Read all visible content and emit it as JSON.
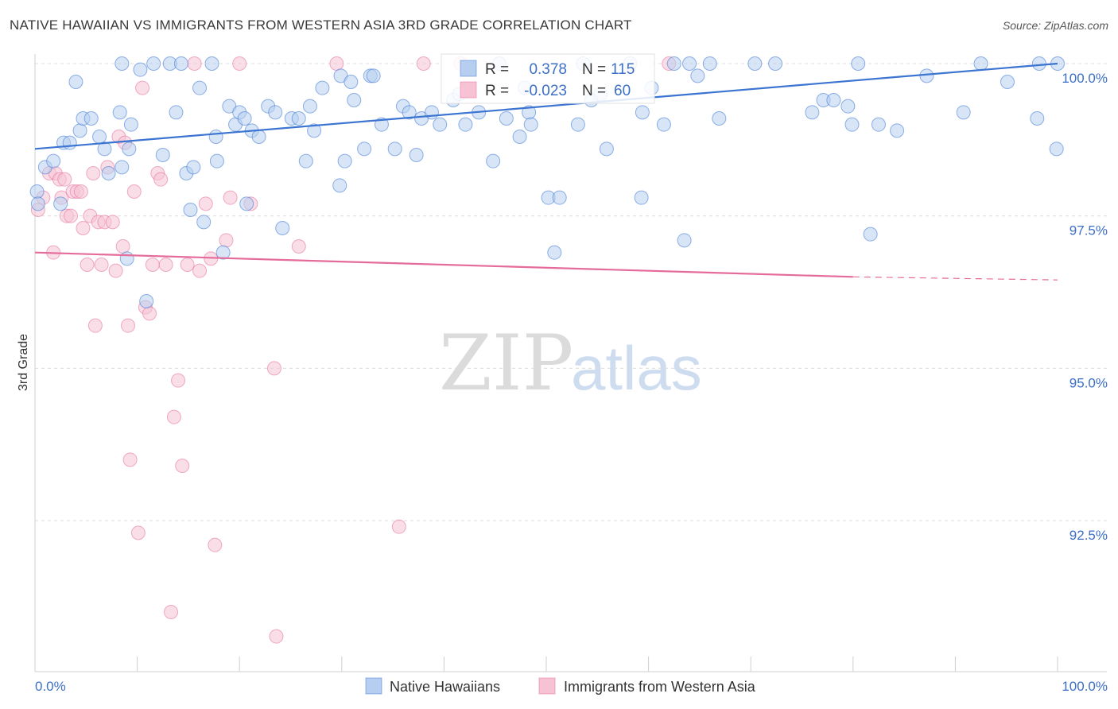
{
  "header": {
    "title": "NATIVE HAWAIIAN VS IMMIGRANTS FROM WESTERN ASIA 3RD GRADE CORRELATION CHART",
    "source": "Source: ZipAtlas.com"
  },
  "watermark": {
    "zip": "ZIP",
    "atlas": "atlas"
  },
  "stats": {
    "r_label": "R =",
    "n_label": "N =",
    "blue": {
      "r": "0.378",
      "n": "115"
    },
    "pink": {
      "r": "-0.023",
      "n": "60"
    }
  },
  "legend": {
    "blue_label": "Native Hawaiians",
    "pink_label": "Immigrants from Western Asia"
  },
  "colors": {
    "blue": "#3b74d1",
    "blue_fill": "#b6cff1",
    "pink": "#e46b9a",
    "pink_fill": "#f6c2d4",
    "grid": "#dcdcdc",
    "axis_text": "#3c6fc7"
  },
  "chart_data": {
    "type": "scatter",
    "title": "NATIVE HAWAIIAN VS IMMIGRANTS FROM WESTERN ASIA 3RD GRADE CORRELATION CHART",
    "xlabel": "",
    "ylabel": "3rd Grade",
    "xlim": [
      0,
      100
    ],
    "ylim": [
      90.2,
      100.6
    ],
    "x_tick_labels": [
      "0.0%",
      "100.0%"
    ],
    "y_ticks": [
      100.0,
      97.5,
      95.0,
      92.5
    ],
    "y_tick_labels": [
      "100.0%",
      "97.5%",
      "95.0%",
      "92.5%"
    ],
    "grid": true,
    "legend_position": "bottom-center",
    "series": [
      {
        "name": "Native Hawaiians",
        "r": 0.378,
        "n": 115,
        "trend": {
          "x": [
            0,
            100
          ],
          "y": [
            98.6,
            100.0
          ]
        },
        "points": [
          [
            0.2,
            97.9
          ],
          [
            0.3,
            97.7
          ],
          [
            1,
            98.3
          ],
          [
            1.8,
            98.4
          ],
          [
            2.5,
            97.7
          ],
          [
            2.8,
            98.7
          ],
          [
            3.4,
            98.7
          ],
          [
            4,
            99.7
          ],
          [
            4.4,
            98.9
          ],
          [
            4.7,
            99.1
          ],
          [
            5.5,
            99.1
          ],
          [
            6.3,
            98.8
          ],
          [
            6.8,
            98.6
          ],
          [
            7.2,
            98.2
          ],
          [
            8.3,
            99.2
          ],
          [
            8.5,
            98.3
          ],
          [
            8.5,
            100.0
          ],
          [
            9,
            96.8
          ],
          [
            9.2,
            98.6
          ],
          [
            9.4,
            99.0
          ],
          [
            10.3,
            99.9
          ],
          [
            10.9,
            96.1
          ],
          [
            11.6,
            100.0
          ],
          [
            12.5,
            98.5
          ],
          [
            13.2,
            100.0
          ],
          [
            13.8,
            99.2
          ],
          [
            14.3,
            100.0
          ],
          [
            14.8,
            98.2
          ],
          [
            15.2,
            97.6
          ],
          [
            15.5,
            98.3
          ],
          [
            16.1,
            99.6
          ],
          [
            16.5,
            97.4
          ],
          [
            17.3,
            100.0
          ],
          [
            17.7,
            98.8
          ],
          [
            17.8,
            98.4
          ],
          [
            18.4,
            96.9
          ],
          [
            19,
            99.3
          ],
          [
            19.6,
            99.0
          ],
          [
            20,
            99.2
          ],
          [
            20.5,
            99.1
          ],
          [
            20.7,
            97.7
          ],
          [
            21.2,
            98.9
          ],
          [
            21.9,
            98.8
          ],
          [
            22.8,
            99.3
          ],
          [
            23.5,
            99.2
          ],
          [
            24.2,
            97.3
          ],
          [
            25.1,
            99.1
          ],
          [
            25.8,
            99.1
          ],
          [
            26.5,
            98.4
          ],
          [
            26.9,
            99.3
          ],
          [
            27.3,
            98.9
          ],
          [
            28.1,
            99.6
          ],
          [
            29.8,
            98.0
          ],
          [
            29.9,
            99.8
          ],
          [
            30.3,
            98.4
          ],
          [
            30.9,
            99.7
          ],
          [
            31.2,
            99.4
          ],
          [
            32.2,
            98.6
          ],
          [
            32.8,
            99.8
          ],
          [
            33.1,
            99.8
          ],
          [
            33.9,
            99.0
          ],
          [
            35.2,
            98.6
          ],
          [
            36,
            99.3
          ],
          [
            36.6,
            99.2
          ],
          [
            37.3,
            98.5
          ],
          [
            37.8,
            99.1
          ],
          [
            38.8,
            99.2
          ],
          [
            39.6,
            99.0
          ],
          [
            40.9,
            99.4
          ],
          [
            41.5,
            99.5
          ],
          [
            42.1,
            99.0
          ],
          [
            43.4,
            99.2
          ],
          [
            44.8,
            98.4
          ],
          [
            45.4,
            100.0
          ],
          [
            46.1,
            99.1
          ],
          [
            47.4,
            98.8
          ],
          [
            47.9,
            99.6
          ],
          [
            48.3,
            99.2
          ],
          [
            48.5,
            99.0
          ],
          [
            50.2,
            97.8
          ],
          [
            50.8,
            96.9
          ],
          [
            51.3,
            97.8
          ],
          [
            53.1,
            99.0
          ],
          [
            53.6,
            100.0
          ],
          [
            54.4,
            99.4
          ],
          [
            55.3,
            99.5
          ],
          [
            55.9,
            98.6
          ],
          [
            58.2,
            100.0
          ],
          [
            59.3,
            97.8
          ],
          [
            59.4,
            99.2
          ],
          [
            60.3,
            99.6
          ],
          [
            61.5,
            99.0
          ],
          [
            62.5,
            100.0
          ],
          [
            63.5,
            97.1
          ],
          [
            64,
            100.0
          ],
          [
            64.8,
            99.8
          ],
          [
            66,
            100.0
          ],
          [
            66.9,
            99.1
          ],
          [
            70.4,
            100.0
          ],
          [
            72.4,
            100.0
          ],
          [
            76,
            99.2
          ],
          [
            77.1,
            99.4
          ],
          [
            78.1,
            99.4
          ],
          [
            79.5,
            99.3
          ],
          [
            79.9,
            99.0
          ],
          [
            80.5,
            100.0
          ],
          [
            81.7,
            97.2
          ],
          [
            82.5,
            99.0
          ],
          [
            84.3,
            98.9
          ],
          [
            87.2,
            99.8
          ],
          [
            90.8,
            99.2
          ],
          [
            92.5,
            100.0
          ],
          [
            95.1,
            99.7
          ],
          [
            98,
            99.1
          ],
          [
            98.2,
            100.0
          ],
          [
            99.9,
            98.6
          ],
          [
            100,
            100.0
          ]
        ]
      },
      {
        "name": "Immigrants from Western Asia",
        "r": -0.023,
        "n": 60,
        "trend": {
          "x": [
            0,
            80
          ],
          "y": [
            96.9,
            96.5
          ]
        },
        "trend_dashed": {
          "x": [
            80,
            100
          ],
          "y": [
            96.5,
            96.45
          ]
        },
        "points": [
          [
            0.3,
            97.6
          ],
          [
            0.8,
            97.8
          ],
          [
            1.4,
            98.2
          ],
          [
            1.8,
            96.9
          ],
          [
            2,
            98.2
          ],
          [
            2.4,
            98.1
          ],
          [
            2.6,
            97.8
          ],
          [
            2.9,
            98.1
          ],
          [
            3.1,
            97.5
          ],
          [
            3.5,
            97.5
          ],
          [
            3.7,
            97.9
          ],
          [
            4.1,
            97.9
          ],
          [
            4.5,
            97.9
          ],
          [
            4.7,
            97.3
          ],
          [
            5.1,
            96.7
          ],
          [
            5.4,
            97.5
          ],
          [
            5.7,
            98.2
          ],
          [
            5.9,
            95.7
          ],
          [
            6.2,
            97.4
          ],
          [
            6.5,
            96.7
          ],
          [
            6.8,
            97.4
          ],
          [
            7.1,
            98.3
          ],
          [
            7.6,
            97.4
          ],
          [
            7.9,
            96.6
          ],
          [
            8.2,
            98.8
          ],
          [
            8.6,
            97.0
          ],
          [
            8.8,
            98.7
          ],
          [
            9.1,
            95.7
          ],
          [
            9.3,
            93.5
          ],
          [
            9.7,
            97.9
          ],
          [
            10.1,
            92.3
          ],
          [
            10.5,
            99.6
          ],
          [
            10.8,
            96.0
          ],
          [
            11.2,
            95.9
          ],
          [
            11.5,
            96.7
          ],
          [
            12,
            98.2
          ],
          [
            12.3,
            98.1
          ],
          [
            12.8,
            96.7
          ],
          [
            13.3,
            91.0
          ],
          [
            13.6,
            94.2
          ],
          [
            14,
            94.8
          ],
          [
            14.4,
            93.4
          ],
          [
            14.9,
            96.7
          ],
          [
            15.6,
            100.0
          ],
          [
            16.1,
            96.6
          ],
          [
            16.7,
            97.7
          ],
          [
            17.2,
            96.8
          ],
          [
            17.6,
            92.1
          ],
          [
            18.7,
            97.1
          ],
          [
            19.1,
            97.8
          ],
          [
            20,
            100.0
          ],
          [
            21.1,
            97.7
          ],
          [
            23.4,
            95.0
          ],
          [
            23.6,
            90.6
          ],
          [
            25.8,
            97.0
          ],
          [
            29.5,
            100.0
          ],
          [
            35.6,
            92.4
          ],
          [
            38,
            100.0
          ],
          [
            41.6,
            100.0
          ],
          [
            62,
            100.0
          ]
        ]
      }
    ]
  }
}
